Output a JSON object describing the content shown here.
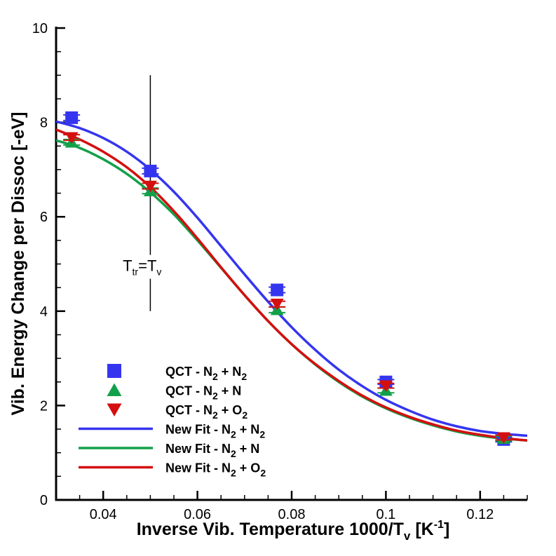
{
  "chart_data": {
    "type": "scatter",
    "title": "",
    "xlabel": {
      "text": "Inverse Vib. Temperature 1000/T",
      "sub": "v",
      "unit_open": " [K",
      "sup": "-1",
      "unit_close": "]"
    },
    "ylabel": "Vib. Energy Change per Dissoc [-eV]",
    "xlim": [
      0.03,
      0.13
    ],
    "ylim": [
      0,
      10
    ],
    "xticks": [
      0.04,
      0.06,
      0.08,
      0.1,
      0.12
    ],
    "xtick_labels": [
      "0.04",
      "0.06",
      "0.08",
      "0.1",
      "0.12"
    ],
    "yticks": [
      0,
      2,
      4,
      6,
      8,
      10
    ],
    "ytick_labels": [
      "0",
      "2",
      "4",
      "6",
      "8",
      "10"
    ],
    "grid": false,
    "legend_position": "bottom-left",
    "series": [
      {
        "kind": "markers",
        "marker": "square",
        "color": "#3535f0",
        "label": {
          "pre": "QCT - N",
          "s1": "2",
          "mid": " + N",
          "s2": "2"
        },
        "x": [
          0.0333,
          0.05,
          0.0769,
          0.1,
          0.125
        ],
        "y": [
          8.1,
          6.97,
          4.45,
          2.5,
          1.28
        ],
        "err": [
          0.06,
          0.06,
          0.06,
          0.05,
          0.05
        ]
      },
      {
        "kind": "markers",
        "marker": "triangle-up",
        "color": "#13a04a",
        "label": {
          "pre": "QCT - N",
          "s1": "2",
          "mid": " + N",
          "s2": ""
        },
        "x": [
          0.0333,
          0.05,
          0.0769,
          0.1,
          0.125
        ],
        "y": [
          7.58,
          6.55,
          4.03,
          2.32,
          1.3
        ],
        "err": [
          0.06,
          0.06,
          0.06,
          0.05,
          0.05
        ]
      },
      {
        "kind": "markers",
        "marker": "triangle-down",
        "color": "#d40f0f",
        "label": {
          "pre": "QCT - N",
          "s1": "2",
          "mid": " + O",
          "s2": "2"
        },
        "x": [
          0.0333,
          0.05,
          0.0769,
          0.1,
          0.125
        ],
        "y": [
          7.68,
          6.65,
          4.15,
          2.42,
          1.32
        ],
        "err": [
          0.06,
          0.06,
          0.06,
          0.05,
          0.05
        ]
      },
      {
        "kind": "line",
        "color": "#3535f0",
        "label": {
          "pre": "New Fit - N",
          "s1": "2",
          "mid": " + N",
          "s2": "2"
        },
        "x": [
          0.03,
          0.035,
          0.04,
          0.045,
          0.05,
          0.055,
          0.06,
          0.065,
          0.07,
          0.075,
          0.08,
          0.085,
          0.09,
          0.095,
          0.1,
          0.105,
          0.11,
          0.115,
          0.12,
          0.125,
          0.13
        ],
        "y": [
          8.02,
          7.88,
          7.67,
          7.38,
          7.0,
          6.53,
          5.98,
          5.38,
          4.78,
          4.2,
          3.66,
          3.18,
          2.76,
          2.41,
          2.12,
          1.89,
          1.7,
          1.56,
          1.46,
          1.4,
          1.36
        ]
      },
      {
        "kind": "line",
        "color": "#13a04a",
        "label": {
          "pre": "New Fit - N",
          "s1": "2",
          "mid": " + N",
          "s2": ""
        },
        "x": [
          0.03,
          0.035,
          0.04,
          0.045,
          0.05,
          0.055,
          0.06,
          0.065,
          0.07,
          0.075,
          0.08,
          0.085,
          0.09,
          0.095,
          0.1,
          0.105,
          0.11,
          0.115,
          0.12,
          0.125,
          0.13
        ],
        "y": [
          7.62,
          7.46,
          7.22,
          6.91,
          6.52,
          6.05,
          5.5,
          4.92,
          4.34,
          3.79,
          3.3,
          2.87,
          2.5,
          2.19,
          1.94,
          1.74,
          1.58,
          1.45,
          1.36,
          1.3,
          1.26
        ]
      },
      {
        "kind": "line",
        "color": "#d40f0f",
        "label": {
          "pre": "New Fit - N",
          "s1": "2",
          "mid": " + O",
          "s2": "2"
        },
        "x": [
          0.03,
          0.035,
          0.04,
          0.045,
          0.05,
          0.055,
          0.06,
          0.065,
          0.07,
          0.075,
          0.08,
          0.085,
          0.09,
          0.095,
          0.1,
          0.105,
          0.11,
          0.115,
          0.12,
          0.125,
          0.13
        ],
        "y": [
          7.85,
          7.64,
          7.38,
          7.05,
          6.63,
          6.12,
          5.54,
          4.93,
          4.34,
          3.79,
          3.3,
          2.88,
          2.52,
          2.21,
          1.96,
          1.76,
          1.6,
          1.47,
          1.38,
          1.31,
          1.26
        ]
      }
    ],
    "annotations": [
      {
        "type": "vertical-line",
        "x": 0.05,
        "y_range": [
          4.0,
          9.0
        ],
        "label": {
          "t1": "T",
          "s1": "tr",
          "mid": "=T",
          "s2": "v"
        },
        "label_at": {
          "x": 0.0507,
          "y": 4.85
        }
      }
    ]
  }
}
